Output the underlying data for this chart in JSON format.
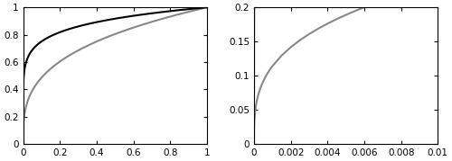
{
  "left_xlim": [
    0,
    1
  ],
  "left_ylim": [
    0,
    1
  ],
  "right_xlim": [
    0,
    0.01
  ],
  "right_ylim": [
    0,
    0.2
  ],
  "left_xticks": [
    0,
    0.2,
    0.4,
    0.6,
    0.8,
    1.0
  ],
  "left_yticks": [
    0,
    0.2,
    0.4,
    0.6,
    0.8,
    1.0
  ],
  "right_xticks": [
    0,
    0.002,
    0.004,
    0.006,
    0.008,
    0.01
  ],
  "right_yticks": [
    0,
    0.05,
    0.1,
    0.15,
    0.2
  ],
  "solid_color": "#000000",
  "dashed_color": "#888888",
  "a_Q": 8.0,
  "a_KS": 3.18,
  "n_points": 2000,
  "background_color": "#ffffff",
  "linewidth": 1.5,
  "tick_labelsize": 7.5,
  "figsize": [
    5.0,
    1.79
  ],
  "dpi": 100
}
